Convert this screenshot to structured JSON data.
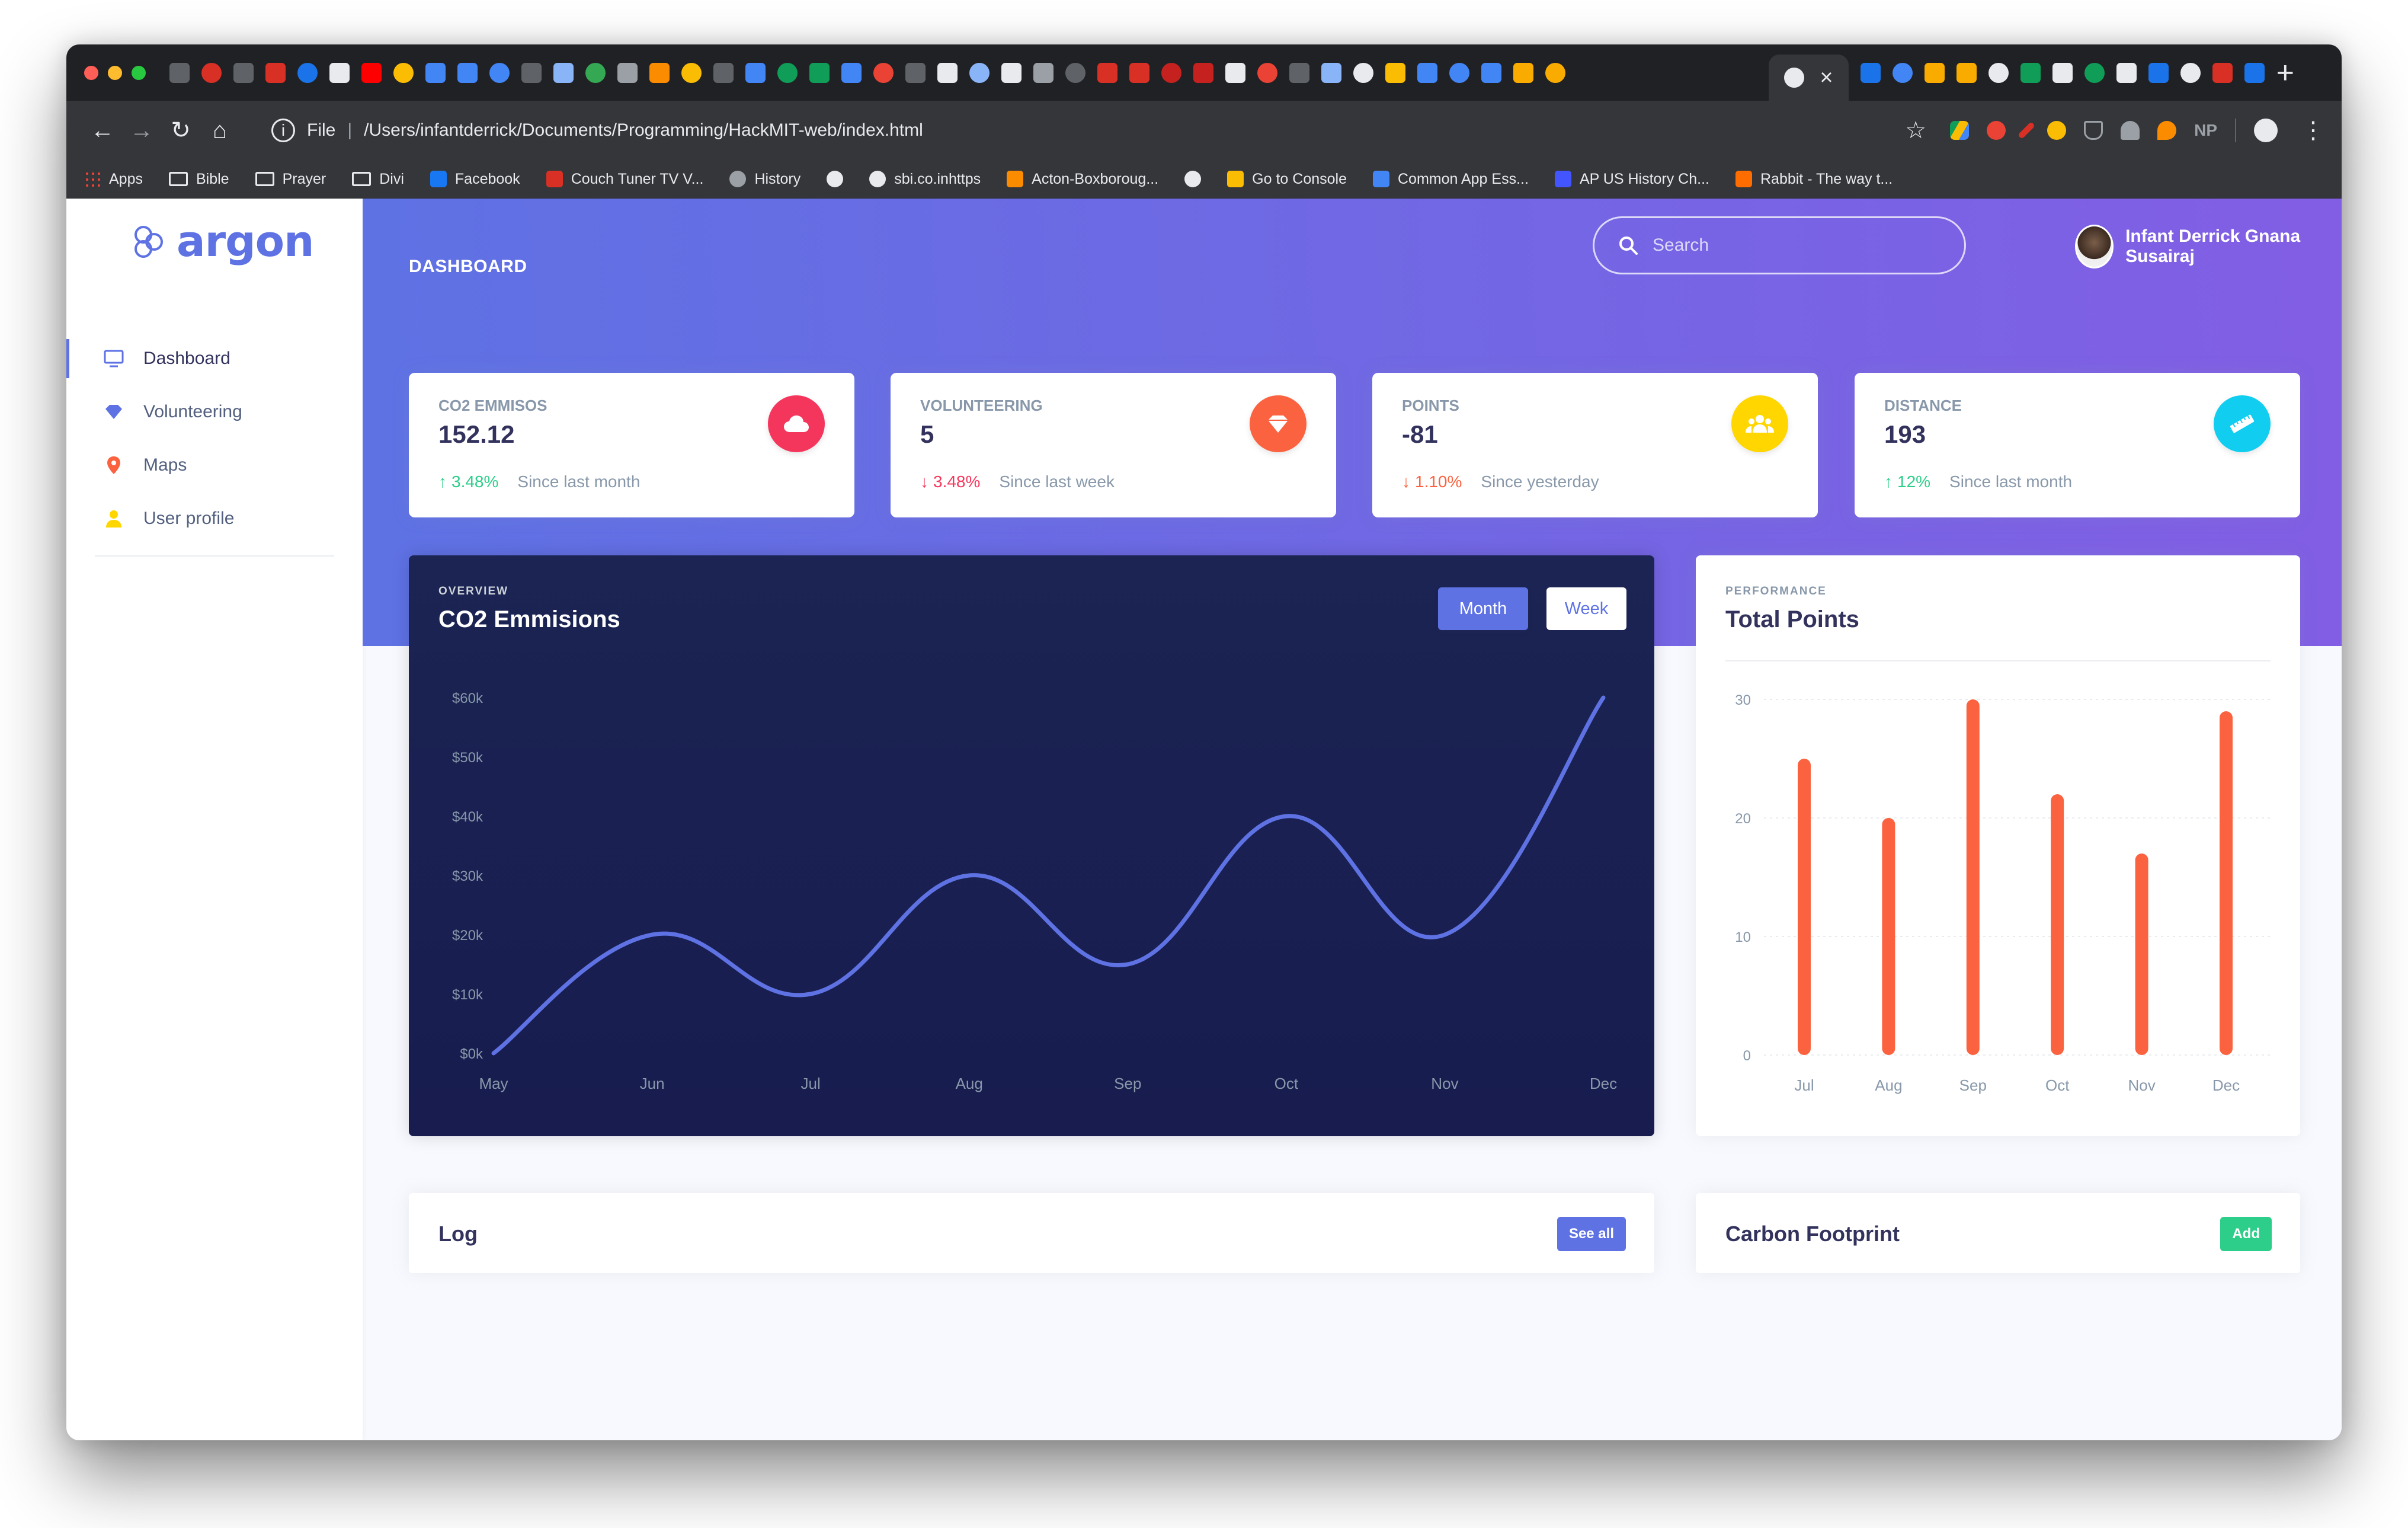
{
  "browser": {
    "url": "/Users/infantderrick/Documents/Programming/HackMIT-web/index.html",
    "file_label": "File",
    "ext_np": "NP",
    "tab_colors": [
      "#5f6368",
      "#d93025",
      "#5f6368",
      "#d93025",
      "#1a73e8",
      "#e8eaed",
      "#ff0000",
      "#fbbc04",
      "#4285f4",
      "#4285f4",
      "#4285f4",
      "#5f6368",
      "#8ab4f8",
      "#34a853",
      "#9aa0a6",
      "#fb8c00",
      "#fbbc04",
      "#5f6368",
      "#4285f4",
      "#0f9d58",
      "#0f9d58",
      "#4285f4",
      "#ea4335",
      "#5f6368",
      "#e8eaed",
      "#8ab4f8",
      "#e8eaed",
      "#9aa0a6",
      "#5f6368",
      "#d93025",
      "#d93025",
      "#c5221f",
      "#c5221f",
      "#e8eaed",
      "#ea4335",
      "#5f6368",
      "#8ab4f8",
      "#e8eaed",
      "#fbbc04",
      "#4285f4",
      "#4285f4",
      "#4285f4",
      "#f9ab00",
      "#f9ab00"
    ],
    "tab_colors_right": [
      "#1a73e8",
      "#4285f4",
      "#f9ab00",
      "#f9ab00",
      "#e8eaed",
      "#0f9d58",
      "#e8eaed",
      "#0f9d58",
      "#e8eaed",
      "#1a73e8",
      "#e8eaed",
      "#d93025",
      "#1a73e8"
    ]
  },
  "bookmarks": [
    {
      "label": "Apps",
      "icon": "apps-grid-icon",
      "color": "#fbbc04"
    },
    {
      "label": "Bible",
      "icon": "folder-icon",
      "color": ""
    },
    {
      "label": "Prayer",
      "icon": "folder-icon",
      "color": ""
    },
    {
      "label": "Divi",
      "icon": "folder-icon",
      "color": ""
    },
    {
      "label": "Facebook",
      "icon": "facebook-icon",
      "color": "#1877f2"
    },
    {
      "label": "Couch Tuner TV V...",
      "icon": "couch-tuner-icon",
      "color": "#d93025"
    },
    {
      "label": "History",
      "icon": "history-icon",
      "color": "#9aa0a6"
    },
    {
      "label": "",
      "icon": "globe-icon",
      "color": "#e8eaed"
    },
    {
      "label": "sbi.co.inhttps",
      "icon": "globe-icon",
      "color": "#e8eaed"
    },
    {
      "label": "Acton-Boxboroug...",
      "icon": "acton-icon",
      "color": "#fb8c00"
    },
    {
      "label": "",
      "icon": "globe-icon",
      "color": "#e8eaed"
    },
    {
      "label": "Go to Console",
      "icon": "firebase-icon",
      "color": "#fbbc04"
    },
    {
      "label": "Common App Ess...",
      "icon": "docs-icon",
      "color": "#4285f4"
    },
    {
      "label": "AP US History Ch...",
      "icon": "quizlet-icon",
      "color": "#4255ff"
    },
    {
      "label": "Rabbit - The way t...",
      "icon": "rabbit-icon",
      "color": "#ff6d00"
    }
  ],
  "sidebar": {
    "logo": "argon",
    "items": [
      {
        "label": "Dashboard",
        "icon": "monitor-icon",
        "color": "#5e72e4",
        "active": true
      },
      {
        "label": "Volunteering",
        "icon": "diamond-icon",
        "color": "#5e72e4"
      },
      {
        "label": "Maps",
        "icon": "map-pin-icon",
        "color": "#fb6340"
      },
      {
        "label": "User profile",
        "icon": "user-icon",
        "color": "#ffd600"
      }
    ]
  },
  "header": {
    "title": "DASHBOARD",
    "search_placeholder": "Search",
    "user_name": "Infant Derrick Gnana Susairaj"
  },
  "stats": [
    {
      "label": "CO2 EMMISOS",
      "value": "152.12",
      "change": "3.48%",
      "dir": "up",
      "since": "Since last month",
      "icon": "cloud-icon",
      "color": "#f5365c"
    },
    {
      "label": "VOLUNTEERING",
      "value": "5",
      "change": "3.48%",
      "dir": "down",
      "since": "Since last week",
      "icon": "diamond-icon",
      "color": "#fb6340"
    },
    {
      "label": "POINTS",
      "value": "-81",
      "change": "1.10%",
      "dir": "down-o",
      "since": "Since yesterday",
      "icon": "users-icon",
      "color": "#ffd600"
    },
    {
      "label": "DISTANCE",
      "value": "193",
      "change": "12%",
      "dir": "up",
      "since": "Since last month",
      "icon": "ruler-icon",
      "color": "#11cdef"
    }
  ],
  "overview": {
    "label": "OVERVIEW",
    "title": "CO2 Emmisions",
    "btn_month": "Month",
    "btn_week": "Week"
  },
  "performance": {
    "label": "PERFORMANCE",
    "title": "Total Points"
  },
  "log": {
    "title": "Log",
    "button": "See all"
  },
  "footprint": {
    "title": "Carbon Footprint",
    "button": "Add"
  },
  "chart_data": [
    {
      "type": "line",
      "title": "CO2 Emmisions",
      "categories": [
        "May",
        "Jun",
        "Jul",
        "Aug",
        "Sep",
        "Oct",
        "Nov",
        "Dec"
      ],
      "values": [
        0,
        20,
        10,
        30,
        15,
        40,
        20,
        60
      ],
      "yticks": [
        "$0k",
        "$10k",
        "$20k",
        "$30k",
        "$40k",
        "$50k",
        "$60k"
      ],
      "ylim": [
        0,
        60
      ],
      "line_color": "#5e72e4",
      "xlabel": "",
      "ylabel": ""
    },
    {
      "type": "bar",
      "title": "Total Points",
      "categories": [
        "Jul",
        "Aug",
        "Sep",
        "Oct",
        "Nov",
        "Dec"
      ],
      "values": [
        25,
        20,
        30,
        22,
        17,
        29
      ],
      "yticks": [
        "0",
        "10",
        "20",
        "30"
      ],
      "ylim": [
        0,
        30
      ],
      "bar_color": "#fb6340",
      "xlabel": "",
      "ylabel": ""
    }
  ]
}
